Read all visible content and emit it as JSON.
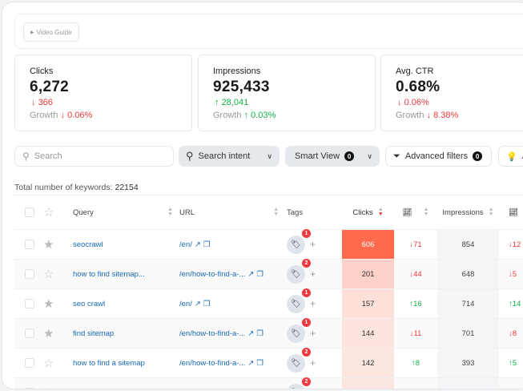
{
  "video_guide": "Video Guide",
  "metrics": [
    {
      "label": "Clicks",
      "value": "6,272",
      "delta": "366",
      "delta_dir": "down",
      "growth_label": "Growth",
      "growth": "0.06%",
      "growth_dir": "down"
    },
    {
      "label": "Impressions",
      "value": "925,433",
      "delta": "28,041",
      "delta_dir": "up",
      "growth_label": "Growth",
      "growth": "0.03%",
      "growth_dir": "up"
    },
    {
      "label": "Avg. CTR",
      "value": "0.68%",
      "delta": "0.06%",
      "delta_dir": "down",
      "growth_label": "Growth",
      "growth": "8.38%",
      "growth_dir": "down"
    }
  ],
  "filters": {
    "search_placeholder": "Search",
    "search_intent": "Search intent",
    "smart_view": "Smart View",
    "smart_view_count": "0",
    "advanced_filters": "Advanced filters",
    "advanced_count": "0",
    "next_partial": "A"
  },
  "total_label": "Total number of keywords:",
  "total_value": "22154",
  "columns": {
    "query": "Query",
    "url": "URL",
    "tags": "Tags",
    "clicks": "Clicks",
    "impressions": "Impressions"
  },
  "colors": {
    "up": "#10b24a",
    "down": "#f0383e",
    "link": "#1668b8"
  },
  "rows": [
    {
      "starred": true,
      "query": "seocrawl",
      "url": "/en/",
      "tags": "1",
      "clicks": "606",
      "clicks_bg": "#ff6a4d",
      "clicks_delta": "71",
      "clicks_dir": "down",
      "impressions": "854",
      "imp_delta": "12",
      "imp_dir": "down"
    },
    {
      "starred": false,
      "query": "how to find sitemap...",
      "url": "/en/how-to-find-a-...",
      "tags": "2",
      "clicks": "201",
      "clicks_bg": "#fdd0c8",
      "clicks_delta": "44",
      "clicks_dir": "down",
      "impressions": "648",
      "imp_delta": "5",
      "imp_dir": "down"
    },
    {
      "starred": true,
      "query": "seo crawl",
      "url": "/en/",
      "tags": "1",
      "clicks": "157",
      "clicks_bg": "#fde0da",
      "clicks_delta": "16",
      "clicks_dir": "up",
      "impressions": "714",
      "imp_delta": "14",
      "imp_dir": "up"
    },
    {
      "starred": true,
      "query": "find sitemap",
      "url": "/en/how-to-find-a-...",
      "tags": "1",
      "clicks": "144",
      "clicks_bg": "#fde3dd",
      "clicks_delta": "11",
      "clicks_dir": "down",
      "impressions": "701",
      "imp_delta": "8",
      "imp_dir": "down"
    },
    {
      "starred": false,
      "query": "how to find a sitemap",
      "url": "/en/how-to-find-a-...",
      "tags": "2",
      "clicks": "142",
      "clicks_bg": "#fde5e0",
      "clicks_delta": "8",
      "clicks_dir": "up",
      "impressions": "393",
      "imp_delta": "5",
      "imp_dir": "up"
    },
    {
      "starred": false,
      "query": "",
      "url": "",
      "tags": "2",
      "clicks": "",
      "clicks_bg": "#fde6e1",
      "clicks_delta": "",
      "clicks_dir": "up",
      "impressions": "",
      "imp_delta": "",
      "imp_dir": "up"
    }
  ]
}
